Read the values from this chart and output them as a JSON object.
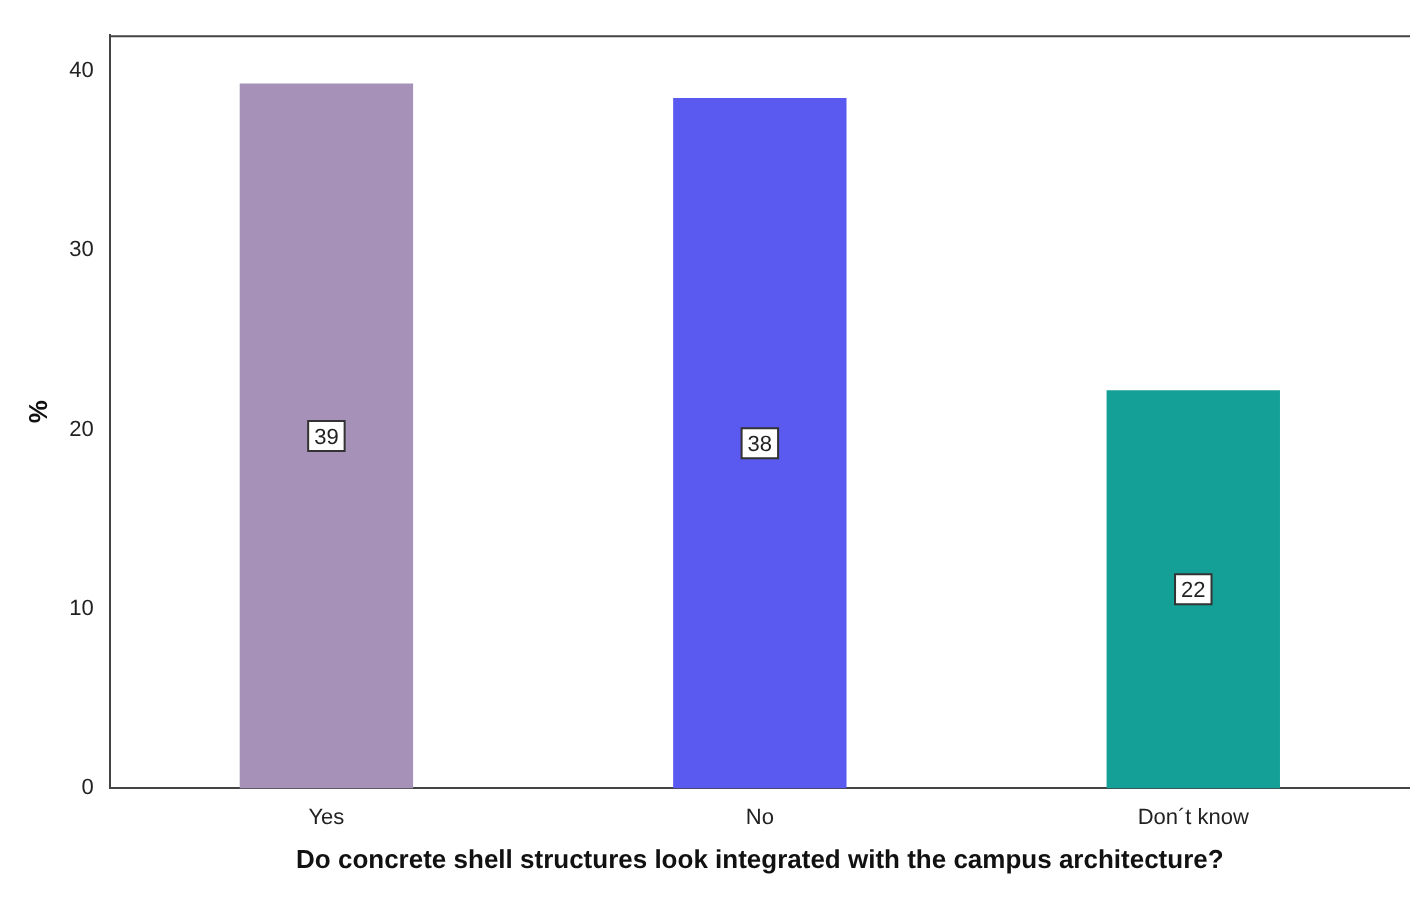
{
  "chart_data": {
    "type": "bar",
    "xlabel": "Do concrete shell structures look integrated with the campus architecture?",
    "ylabel": "%",
    "categories": [
      "Yes",
      "No",
      "Don´t know"
    ],
    "values": [
      39.3,
      38.5,
      22.2
    ],
    "value_labels": [
      "39",
      "38",
      "22"
    ],
    "colors": [
      "#a692b8",
      "#5a5af0",
      "#14a096"
    ],
    "ylim": [
      0,
      42
    ],
    "yticks": [
      0,
      10,
      20,
      30,
      40
    ],
    "grid": false,
    "legend": false
  }
}
